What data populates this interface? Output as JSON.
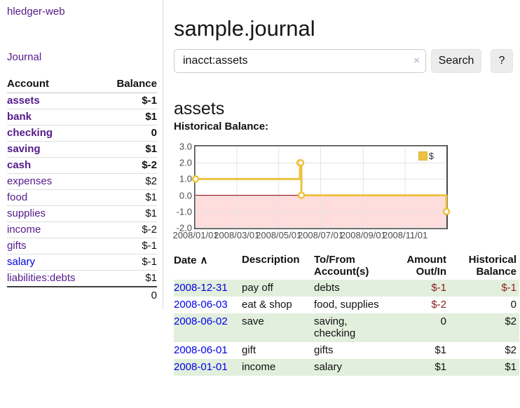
{
  "app": {
    "title": "hledger-web"
  },
  "nav": {
    "journal_label": "Journal"
  },
  "sidebar": {
    "headers": {
      "account": "Account",
      "balance": "Balance"
    },
    "accounts": [
      {
        "name": "assets",
        "indent": 1,
        "bold": true,
        "balance": "$-1",
        "balance_class": "neg-strong"
      },
      {
        "name": "bank",
        "indent": 2,
        "bold": true,
        "balance": "$1",
        "balance_class": ""
      },
      {
        "name": "checking",
        "indent": 3,
        "bold": true,
        "balance": "0",
        "balance_class": ""
      },
      {
        "name": "saving",
        "indent": 3,
        "bold": true,
        "balance": "$1",
        "balance_class": ""
      },
      {
        "name": "cash",
        "indent": 2,
        "bold": true,
        "balance": "$-2",
        "balance_class": "neg-strong"
      },
      {
        "name": "expenses",
        "indent": 1,
        "bold": false,
        "balance": "$2",
        "balance_class": ""
      },
      {
        "name": "food",
        "indent": 2,
        "bold": false,
        "balance": "$1",
        "balance_class": ""
      },
      {
        "name": "supplies",
        "indent": 2,
        "bold": false,
        "balance": "$1",
        "balance_class": ""
      },
      {
        "name": "income",
        "indent": 1,
        "bold": false,
        "balance": "$-2",
        "balance_class": "neg-soft"
      },
      {
        "name": "gifts",
        "indent": 2,
        "bold": false,
        "balance": "$-1",
        "balance_class": "neg-soft"
      },
      {
        "name": "salary",
        "indent": 2,
        "bold": false,
        "balance": "$-1",
        "balance_class": "neg-soft",
        "link_color": "blue"
      },
      {
        "name": "liabilities:debts",
        "indent": 1,
        "bold": false,
        "balance": "$1",
        "balance_class": ""
      }
    ],
    "total": "0"
  },
  "main": {
    "title": "sample.journal",
    "search": {
      "value": "inacct:assets",
      "clear_icon": "×",
      "button": "Search",
      "help_button": "?"
    },
    "account_heading": "assets",
    "chart_heading": "Historical Balance:"
  },
  "register": {
    "sort_icon": "∧",
    "headers": {
      "date": "Date",
      "description": "Description",
      "accounts": "To/From Account(s)",
      "amount": "Amount Out/In",
      "balance": "Historical Balance"
    },
    "rows": [
      {
        "date": "2008-12-31",
        "description": "pay off",
        "accounts": "debts",
        "amount": "$-1",
        "amount_neg": true,
        "balance": "$-1",
        "balance_neg": true
      },
      {
        "date": "2008-06-03",
        "description": "eat & shop",
        "accounts": "food, supplies",
        "amount": "$-2",
        "amount_neg": true,
        "balance": "0",
        "balance_neg": false
      },
      {
        "date": "2008-06-02",
        "description": "save",
        "accounts": "saving, checking",
        "amount": "0",
        "amount_neg": false,
        "balance": "$2",
        "balance_neg": false
      },
      {
        "date": "2008-06-01",
        "description": "gift",
        "accounts": "gifts",
        "amount": "$1",
        "amount_neg": false,
        "balance": "$2",
        "balance_neg": false
      },
      {
        "date": "2008-01-01",
        "description": "income",
        "accounts": "salary",
        "amount": "$1",
        "amount_neg": false,
        "balance": "$1",
        "balance_neg": false
      }
    ]
  },
  "chart_data": {
    "type": "line",
    "title": "Historical Balance:",
    "step": true,
    "series": [
      {
        "name": "$",
        "color": "#edc240",
        "points": [
          [
            "2008-01-01",
            1
          ],
          [
            "2008-06-01",
            2
          ],
          [
            "2008-06-02",
            2
          ],
          [
            "2008-06-03",
            0
          ],
          [
            "2008-12-31",
            -1
          ]
        ]
      }
    ],
    "x_range": [
      "2008-01-01",
      "2008-12-31"
    ],
    "ylim": [
      -2,
      3
    ],
    "y_ticks": [
      3,
      2,
      1,
      0,
      -1,
      -2
    ],
    "x_ticks": [
      "2008/01/01",
      "2008/03/01",
      "2008/05/01",
      "2008/07/01",
      "2008/09/01",
      "2008/11/01"
    ],
    "grid": true,
    "legend": {
      "label": "$",
      "position": "top-right"
    },
    "negative_region_color": "#ffdddd",
    "zero_line_color": "#8b0000"
  },
  "colors": {
    "link_purple": "#551a8b",
    "link_blue": "#0000e8",
    "negative_strong": "#8b1d1d",
    "negative_soft": "#bd7b7b",
    "row_stripe_green": "#e2efdd",
    "series_yellow": "#edc240",
    "negative_region_pink": "#ffdddd",
    "zero_line_red": "#8b0000"
  }
}
